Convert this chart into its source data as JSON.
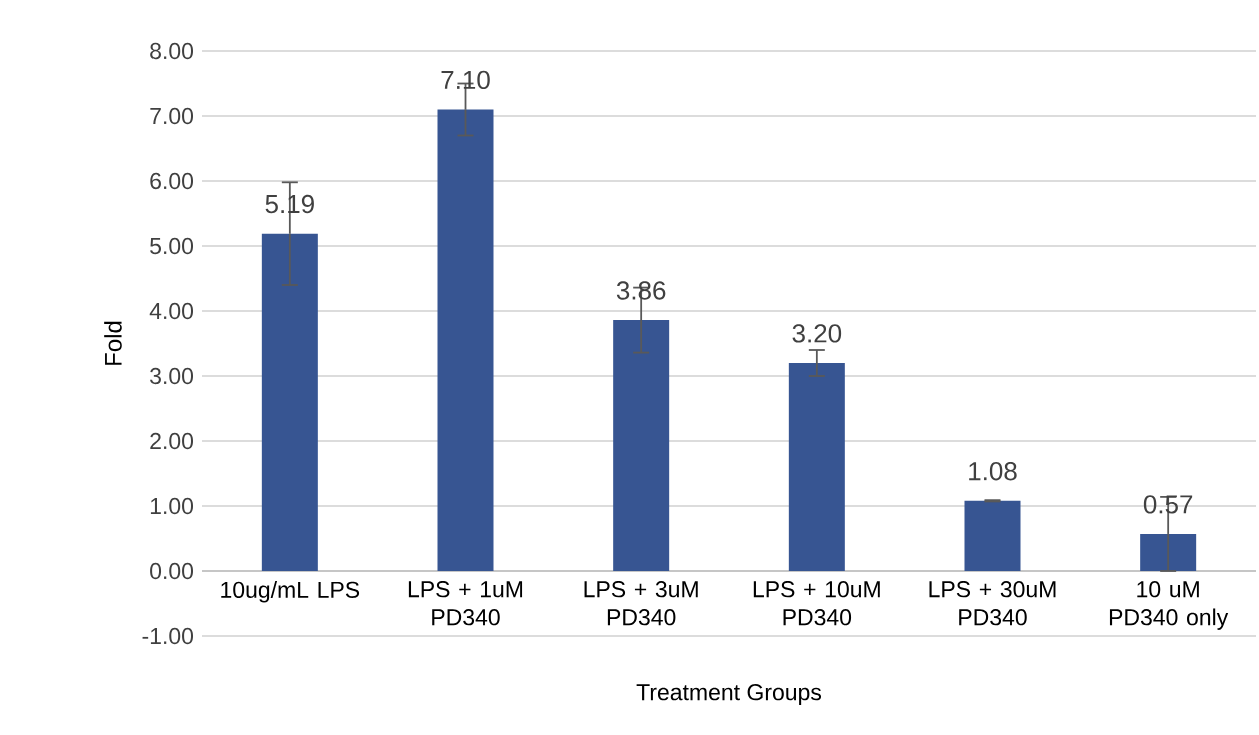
{
  "chart_data": {
    "type": "bar",
    "xlabel": "Treatment Groups",
    "ylabel": "Fold",
    "categories": [
      "10ug/mL LPS",
      "LPS + 1uM PD340",
      "LPS + 3uM PD340",
      "LPS + 10uM PD340",
      "LPS + 30uM PD340",
      "10 uM PD340 only"
    ],
    "values": [
      5.19,
      7.1,
      3.86,
      3.2,
      1.08,
      0.57
    ],
    "value_labels": [
      "5.19",
      "7.10",
      "3.86",
      "3.20",
      "1.08",
      "0.57"
    ],
    "errors": [
      0.79,
      0.4,
      0.5,
      0.2,
      0.01,
      0.57
    ],
    "color": "#375592",
    "ylim": [
      -1,
      8
    ],
    "yticks": [
      {
        "value": -1,
        "label": "-1.00"
      },
      {
        "value": 0,
        "label": "0.00"
      },
      {
        "value": 1,
        "label": "1.00"
      },
      {
        "value": 2,
        "label": "2.00"
      },
      {
        "value": 3,
        "label": "3.00"
      },
      {
        "value": 4,
        "label": "4.00"
      },
      {
        "value": 5,
        "label": "5.00"
      },
      {
        "value": 6,
        "label": "6.00"
      },
      {
        "value": 7,
        "label": "7.00"
      },
      {
        "value": 8,
        "label": "8.00"
      }
    ],
    "grid": "y"
  }
}
